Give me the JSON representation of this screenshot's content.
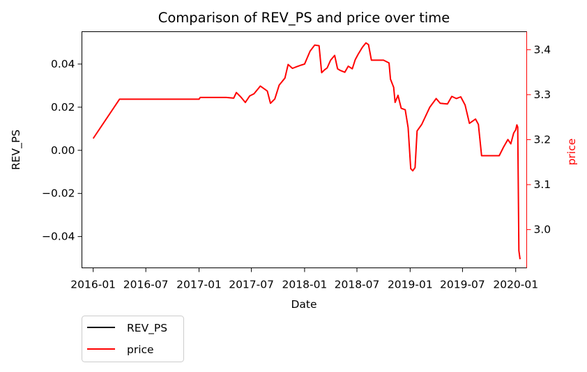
{
  "chart_data": {
    "type": "line",
    "title": "Comparison of REV_PS and price over time",
    "xlabel": "Date",
    "ylabel_left": "REV_PS",
    "ylabel_right": "price",
    "x_ticks": [
      "2016-01",
      "2016-07",
      "2017-01",
      "2017-07",
      "2018-01",
      "2018-07",
      "2019-01",
      "2019-07",
      "2020-01"
    ],
    "x_range": [
      "2015-11-23",
      "2020-02-08"
    ],
    "y_left": {
      "lim": [
        -0.0545,
        0.055
      ],
      "ticks": [
        "0.04",
        "0.02",
        "0.00",
        "−0.02",
        "−0.04"
      ],
      "tick_values": [
        0.04,
        0.02,
        0.0,
        -0.02,
        -0.04
      ]
    },
    "y_right": {
      "lim": [
        2.915,
        3.44
      ],
      "ticks": [
        "3.4",
        "3.3",
        "3.2",
        "3.1",
        "3.0"
      ],
      "tick_values": [
        3.4,
        3.3,
        3.2,
        3.1,
        3.0
      ],
      "color": "#ff0000"
    },
    "grid": false,
    "legend": {
      "placement": "below-left",
      "entries": [
        "REV_PS",
        "price"
      ]
    },
    "series": [
      {
        "name": "REV_PS",
        "color": "#000000",
        "axis": "left",
        "points": []
      },
      {
        "name": "price",
        "color": "#ff0000",
        "axis": "left",
        "points": [
          [
            "2016-01-01",
            0.0055
          ],
          [
            "2016-04-01",
            0.0237
          ],
          [
            "2017-01-01",
            0.0237
          ],
          [
            "2017-01-05",
            0.0245
          ],
          [
            "2017-04-05",
            0.0245
          ],
          [
            "2017-05-01",
            0.0242
          ],
          [
            "2017-05-10",
            0.0268
          ],
          [
            "2017-05-25",
            0.0248
          ],
          [
            "2017-06-10",
            0.0222
          ],
          [
            "2017-06-25",
            0.0252
          ],
          [
            "2017-07-10",
            0.0262
          ],
          [
            "2017-08-01",
            0.0298
          ],
          [
            "2017-08-25",
            0.0275
          ],
          [
            "2017-09-05",
            0.0218
          ],
          [
            "2017-09-20",
            0.0238
          ],
          [
            "2017-10-05",
            0.0302
          ],
          [
            "2017-10-25",
            0.0335
          ],
          [
            "2017-11-05",
            0.0398
          ],
          [
            "2017-11-20",
            0.038
          ],
          [
            "2017-12-05",
            0.0388
          ],
          [
            "2017-12-20",
            0.0395
          ],
          [
            "2018-01-01",
            0.04
          ],
          [
            "2018-01-20",
            0.046
          ],
          [
            "2018-02-05",
            0.0488
          ],
          [
            "2018-02-20",
            0.0485
          ],
          [
            "2018-03-01",
            0.036
          ],
          [
            "2018-03-10",
            0.0372
          ],
          [
            "2018-03-20",
            0.0382
          ],
          [
            "2018-04-01",
            0.0418
          ],
          [
            "2018-04-15",
            0.044
          ],
          [
            "2018-04-25",
            0.0378
          ],
          [
            "2018-05-05",
            0.037
          ],
          [
            "2018-05-20",
            0.0362
          ],
          [
            "2018-06-01",
            0.039
          ],
          [
            "2018-06-15",
            0.0378
          ],
          [
            "2018-06-25",
            0.042
          ],
          [
            "2018-07-05",
            0.0445
          ],
          [
            "2018-07-20",
            0.0478
          ],
          [
            "2018-08-01",
            0.0498
          ],
          [
            "2018-08-10",
            0.049
          ],
          [
            "2018-08-20",
            0.0418
          ],
          [
            "2018-10-01",
            0.0418
          ],
          [
            "2018-10-20",
            0.0405
          ],
          [
            "2018-10-25",
            0.033
          ],
          [
            "2018-11-05",
            0.0292
          ],
          [
            "2018-11-10",
            0.0222
          ],
          [
            "2018-11-20",
            0.0255
          ],
          [
            "2018-12-01",
            0.0195
          ],
          [
            "2018-12-15",
            0.0188
          ],
          [
            "2018-12-25",
            0.0105
          ],
          [
            "2019-01-03",
            -0.0085
          ],
          [
            "2019-01-10",
            -0.0095
          ],
          [
            "2019-01-18",
            -0.008
          ],
          [
            "2019-01-25",
            0.009
          ],
          [
            "2019-02-10",
            0.012
          ],
          [
            "2019-03-10",
            0.02
          ],
          [
            "2019-04-01",
            0.024
          ],
          [
            "2019-04-15",
            0.0218
          ],
          [
            "2019-05-10",
            0.0215
          ],
          [
            "2019-05-25",
            0.025
          ],
          [
            "2019-06-10",
            0.024
          ],
          [
            "2019-06-25",
            0.0248
          ],
          [
            "2019-07-10",
            0.021
          ],
          [
            "2019-07-25",
            0.0125
          ],
          [
            "2019-08-15",
            0.0145
          ],
          [
            "2019-08-25",
            0.012
          ],
          [
            "2019-09-05",
            -0.0025
          ],
          [
            "2019-11-05",
            -0.0025
          ],
          [
            "2019-11-20",
            0.0015
          ],
          [
            "2019-12-05",
            0.005
          ],
          [
            "2019-12-15",
            0.003
          ],
          [
            "2019-12-25",
            0.008
          ],
          [
            "2020-01-01",
            0.0095
          ],
          [
            "2020-01-05",
            0.0118
          ],
          [
            "2020-01-08",
            0.0108
          ],
          [
            "2020-01-12",
            -0.0465
          ],
          [
            "2020-01-16",
            -0.0505
          ]
        ]
      }
    ]
  }
}
